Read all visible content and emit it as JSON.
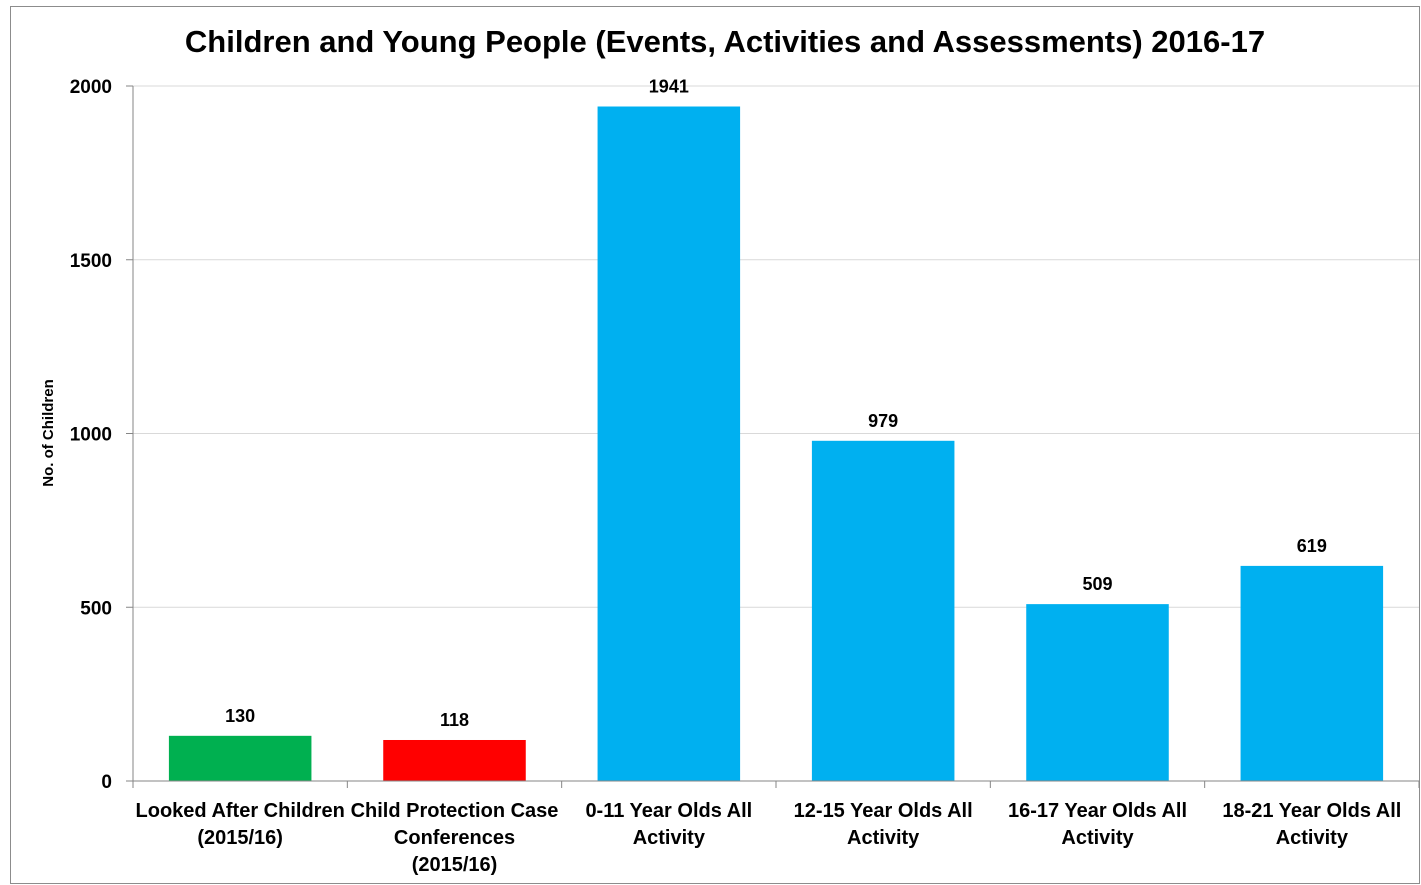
{
  "chart_data": {
    "type": "bar",
    "title": "Children and Young People (Events, Activities and Assessments) 2016-17",
    "xlabel": "",
    "ylabel": "No. of Children",
    "ylim": [
      0,
      2000
    ],
    "yticks": [
      0,
      500,
      1000,
      1500,
      2000
    ],
    "grid": true,
    "legend": "none",
    "categories": [
      [
        "Looked After Children",
        "(2015/16)"
      ],
      [
        "Child Protection Case",
        "Conferences",
        "(2015/16)"
      ],
      [
        "0-11 Year Olds All",
        "Activity"
      ],
      [
        "12-15 Year Olds All",
        "Activity"
      ],
      [
        "16-17 Year Olds All",
        "Activity"
      ],
      [
        "18-21 Year Olds All",
        "Activity"
      ]
    ],
    "values": [
      130,
      118,
      1941,
      979,
      509,
      619
    ],
    "data_labels": [
      "130",
      "118",
      "1941",
      "979",
      "509",
      "619"
    ],
    "colors": [
      "#00b050",
      "#ff0000",
      "#00b0f0",
      "#00b0f0",
      "#00b0f0",
      "#00b0f0"
    ]
  }
}
